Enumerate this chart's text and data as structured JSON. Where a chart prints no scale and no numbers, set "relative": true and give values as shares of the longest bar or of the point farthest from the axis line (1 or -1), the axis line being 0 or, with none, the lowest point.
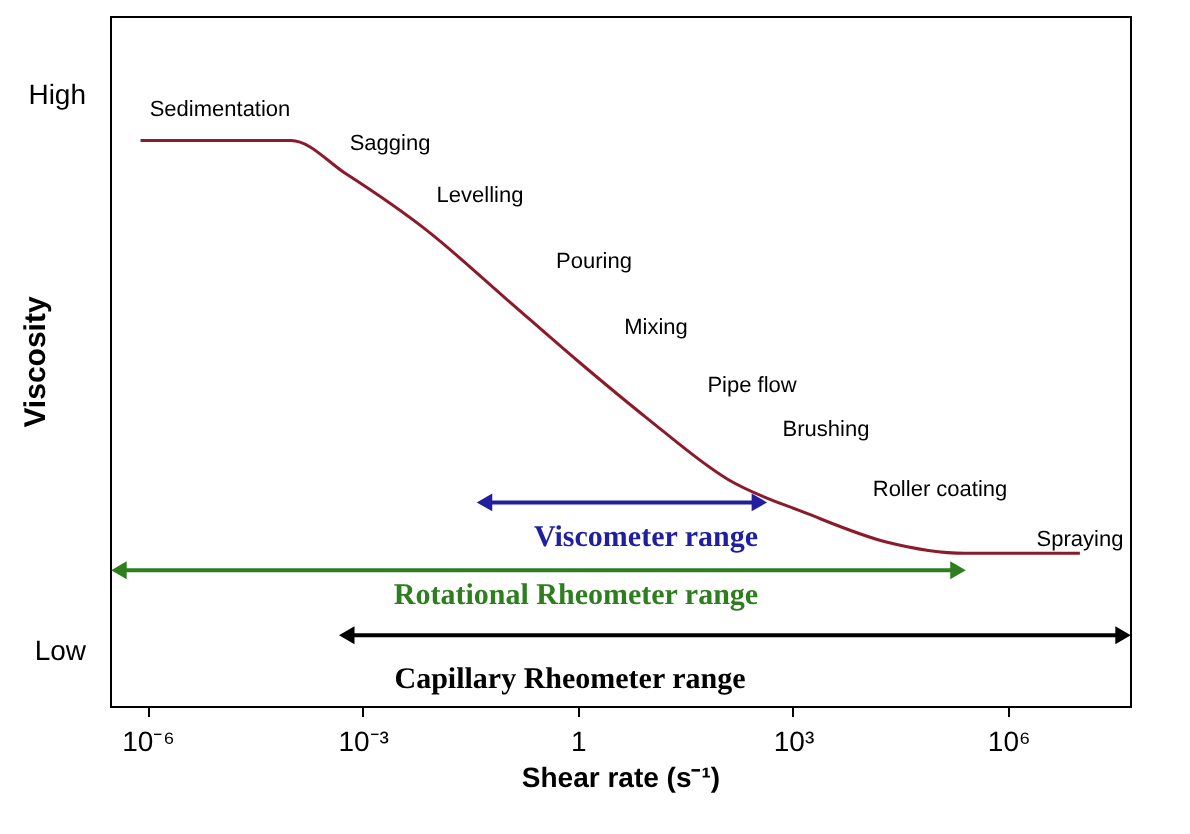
{
  "chart_data": {
    "type": "line",
    "relative": true,
    "xlabel": "Shear rate (s⁻¹)",
    "ylabel": "Viscosity",
    "log": "x",
    "grid": false,
    "marker": "none",
    "line_style": "solid",
    "xlim": [
      3e-07,
      50000000.0
    ],
    "xticks": [
      {
        "value": 1e-06,
        "label": "10⁻⁶"
      },
      {
        "value": 0.001,
        "label": "10⁻³"
      },
      1,
      {
        "value": 1000,
        "label": "10³"
      },
      {
        "value": 1000000,
        "label": "10⁶"
      }
    ],
    "series": [
      {
        "color": "#8b1a2b",
        "x": [
          8e-07,
          0.0001,
          0.0006,
          0.008,
          0.1,
          1,
          9,
          126,
          1600,
          20000,
          250000,
          10000000
        ],
        "values": [
          1,
          1,
          0.94,
          0.84,
          0.72,
          0.61,
          0.51,
          0.4,
          0.34,
          0.29,
          0.27,
          0.27
        ]
      },
      {
        "name": "Viscometer range",
        "color": "#1f1fa0",
        "marker": "triangle",
        "x": [
          0.05,
          340
        ],
        "values": [
          0.36,
          0.36
        ]
      },
      {
        "name": "Rotational Rheometer range",
        "color": "#2e7d1f",
        "marker": "triangle",
        "x": [
          4e-07,
          200000
        ],
        "values": [
          0.24,
          0.24
        ]
      },
      {
        "name": "Capillary Rheometer range",
        "color": "#000000",
        "marker": "triangle",
        "x": [
          0.0006,
          40000000.0
        ],
        "values": [
          0.125,
          0.125
        ]
      }
    ],
    "annotations": [
      "High",
      "Low",
      "Sedimentation",
      "Sagging",
      "Levelling",
      "Pouring",
      "Mixing",
      "Pipe flow",
      "Brushing",
      "Roller coating",
      "Spraying"
    ]
  }
}
